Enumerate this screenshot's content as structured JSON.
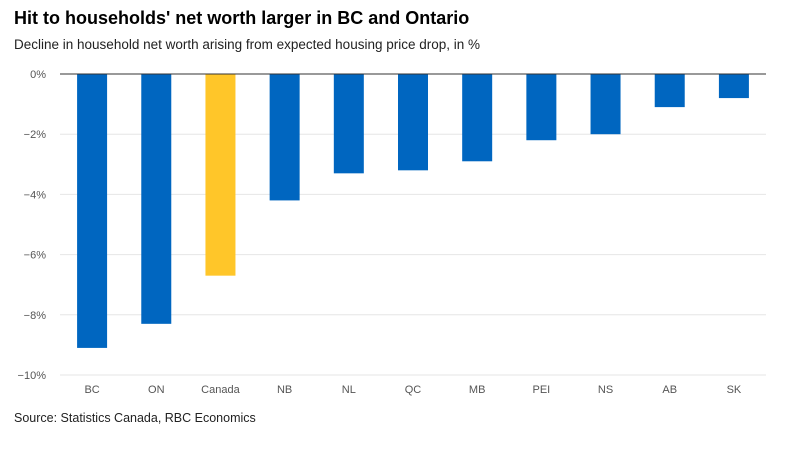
{
  "title": "Hit to households' net worth larger in BC and Ontario",
  "subtitle": "Decline in household net worth arising from expected housing price drop, in %",
  "source": "Source: Statistics Canada, RBC Economics",
  "colors": {
    "primary": "#0066c0",
    "highlight": "#ffc629",
    "grid": "#e6e6e6",
    "zero_line": "#333333"
  },
  "chart_data": {
    "type": "bar",
    "title": "Hit to households' net worth larger in BC and Ontario",
    "subtitle": "Decline in household net worth arising from expected housing price drop, in %",
    "xlabel": "",
    "ylabel": "",
    "categories": [
      "BC",
      "ON",
      "Canada",
      "NB",
      "NL",
      "QC",
      "MB",
      "PEI",
      "NS",
      "AB",
      "SK"
    ],
    "values": [
      -9.1,
      -8.3,
      -6.7,
      -4.2,
      -3.3,
      -3.2,
      -2.9,
      -2.2,
      -2.0,
      -1.1,
      -0.8
    ],
    "highlight_category": "Canada",
    "ylim": [
      -10,
      0
    ],
    "yticks": [
      0,
      -2,
      -4,
      -6,
      -8,
      -10
    ],
    "ytick_labels": [
      "0%",
      "−2%",
      "−4%",
      "−6%",
      "−8%",
      "−10%"
    ],
    "grid": true,
    "legend": "none"
  }
}
